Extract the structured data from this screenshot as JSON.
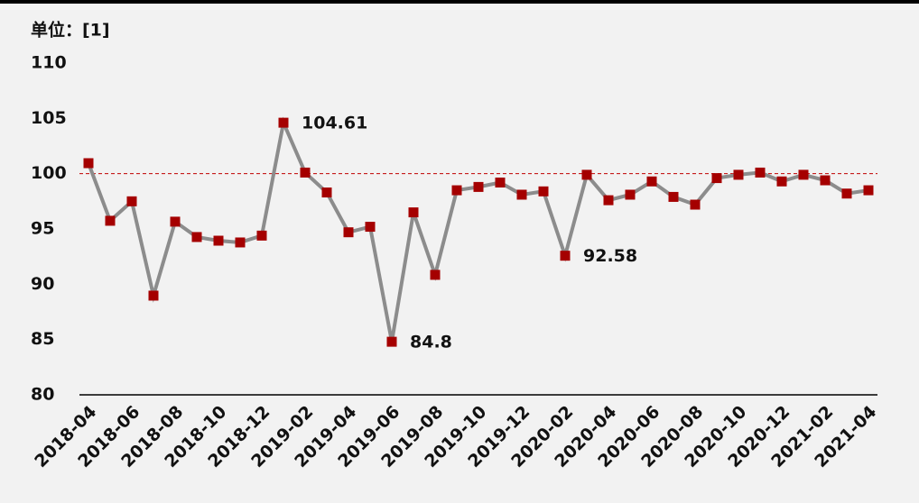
{
  "chart_data": {
    "type": "line",
    "y_label": "单位：[1]",
    "categories": [
      "2018-04",
      null,
      "2018-06",
      null,
      "2018-08",
      null,
      "2018-10",
      null,
      "2018-12",
      null,
      "2019-02",
      null,
      "2019-04",
      null,
      "2019-06",
      null,
      "2019-08",
      null,
      "2019-10",
      null,
      "2019-12",
      null,
      "2020-02",
      null,
      "2020-04",
      null,
      "2020-06",
      null,
      "2020-08",
      null,
      "2020-10",
      null,
      "2020-12",
      null,
      "2021-02",
      null,
      "2021-04"
    ],
    "series": [
      {
        "name": null,
        "color": "#8c8c8c",
        "marker_color": "#a50000",
        "values": [
          100.95,
          95.74,
          97.5,
          88.97,
          95.66,
          94.27,
          93.94,
          93.78,
          94.4,
          104.61,
          100.1,
          98.3,
          94.7,
          95.2,
          84.8,
          96.5,
          90.85,
          98.5,
          98.8,
          99.2,
          98.1,
          98.4,
          92.58,
          99.9,
          97.6,
          98.1,
          99.3,
          97.9,
          97.2,
          99.6,
          99.9,
          100.1,
          99.3,
          99.9,
          99.4,
          98.2,
          98.5
        ],
        "value_labels": [
          null,
          null,
          null,
          null,
          null,
          null,
          null,
          null,
          null,
          "104.61",
          null,
          null,
          null,
          null,
          "84.8",
          null,
          null,
          null,
          null,
          null,
          null,
          null,
          "92.58",
          null,
          null,
          null,
          null,
          null,
          null,
          null,
          null,
          null,
          null,
          null,
          null,
          null,
          null
        ]
      }
    ],
    "reference_line": {
      "value": 100,
      "color": "#c00000",
      "style": "dashed"
    },
    "ylim": [
      80,
      110
    ],
    "yticks": [
      80,
      85,
      90,
      95,
      100,
      105,
      110
    ],
    "grid": false
  }
}
